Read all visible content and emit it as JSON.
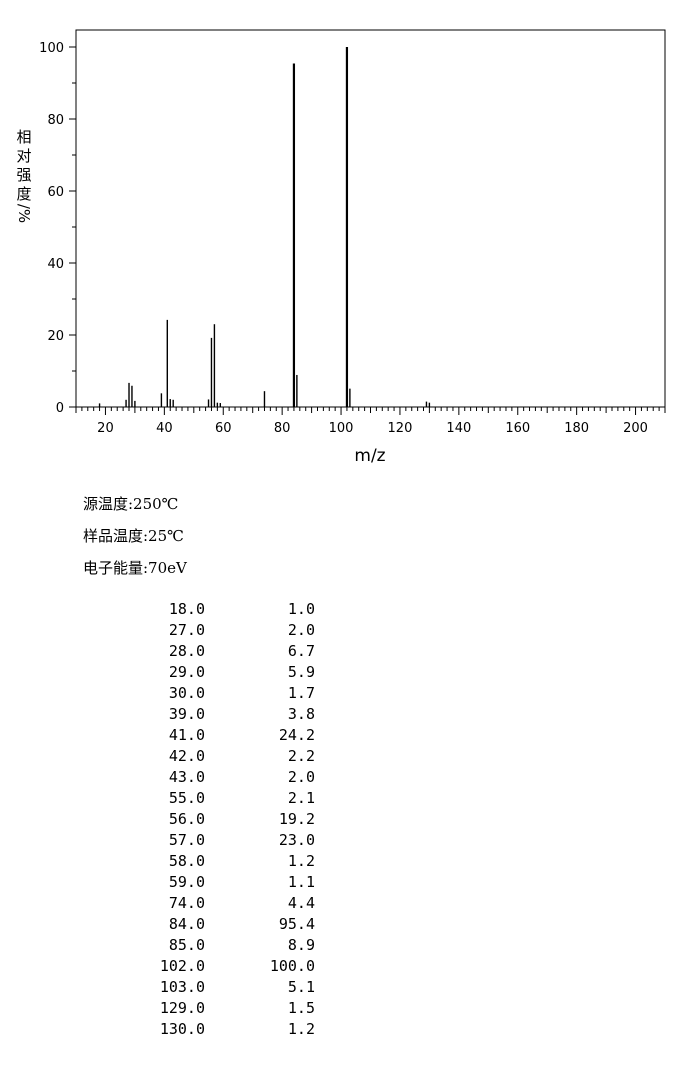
{
  "chart_data": {
    "type": "bar",
    "xlabel": "m/z",
    "ylabel_chars": [
      "相",
      "对",
      "强",
      "度",
      "/%"
    ],
    "xlim": [
      10,
      210
    ],
    "ylim": [
      0,
      100
    ],
    "xticks": [
      20,
      40,
      60,
      80,
      100,
      120,
      140,
      160,
      180,
      200
    ],
    "yticks": [
      0,
      20,
      40,
      60,
      80,
      100
    ],
    "peaks": [
      {
        "mz": 18.0,
        "intensity": 1.0
      },
      {
        "mz": 27.0,
        "intensity": 2.0
      },
      {
        "mz": 28.0,
        "intensity": 6.7
      },
      {
        "mz": 29.0,
        "intensity": 5.9
      },
      {
        "mz": 30.0,
        "intensity": 1.7
      },
      {
        "mz": 39.0,
        "intensity": 3.8
      },
      {
        "mz": 41.0,
        "intensity": 24.2
      },
      {
        "mz": 42.0,
        "intensity": 2.2
      },
      {
        "mz": 43.0,
        "intensity": 2.0
      },
      {
        "mz": 55.0,
        "intensity": 2.1
      },
      {
        "mz": 56.0,
        "intensity": 19.2
      },
      {
        "mz": 57.0,
        "intensity": 23.0
      },
      {
        "mz": 58.0,
        "intensity": 1.2
      },
      {
        "mz": 59.0,
        "intensity": 1.1
      },
      {
        "mz": 74.0,
        "intensity": 4.4
      },
      {
        "mz": 84.0,
        "intensity": 95.4
      },
      {
        "mz": 85.0,
        "intensity": 8.9
      },
      {
        "mz": 102.0,
        "intensity": 100.0
      },
      {
        "mz": 103.0,
        "intensity": 5.1
      },
      {
        "mz": 129.0,
        "intensity": 1.5
      },
      {
        "mz": 130.0,
        "intensity": 1.2
      }
    ]
  },
  "conditions": {
    "source_temp": "源温度:250℃",
    "sample_temp": "样品温度:25℃",
    "electron_energy": "电子能量:70eV"
  },
  "peak_table": [
    {
      "mz": "18.0",
      "ri": "1.0"
    },
    {
      "mz": "27.0",
      "ri": "2.0"
    },
    {
      "mz": "28.0",
      "ri": "6.7"
    },
    {
      "mz": "29.0",
      "ri": "5.9"
    },
    {
      "mz": "30.0",
      "ri": "1.7"
    },
    {
      "mz": "39.0",
      "ri": "3.8"
    },
    {
      "mz": "41.0",
      "ri": "24.2"
    },
    {
      "mz": "42.0",
      "ri": "2.2"
    },
    {
      "mz": "43.0",
      "ri": "2.0"
    },
    {
      "mz": "55.0",
      "ri": "2.1"
    },
    {
      "mz": "56.0",
      "ri": "19.2"
    },
    {
      "mz": "57.0",
      "ri": "23.0"
    },
    {
      "mz": "58.0",
      "ri": "1.2"
    },
    {
      "mz": "59.0",
      "ri": "1.1"
    },
    {
      "mz": "74.0",
      "ri": "4.4"
    },
    {
      "mz": "84.0",
      "ri": "95.4"
    },
    {
      "mz": "85.0",
      "ri": "8.9"
    },
    {
      "mz": "102.0",
      "ri": "100.0"
    },
    {
      "mz": "103.0",
      "ri": "5.1"
    },
    {
      "mz": "129.0",
      "ri": "1.5"
    },
    {
      "mz": "130.0",
      "ri": "1.2"
    }
  ]
}
